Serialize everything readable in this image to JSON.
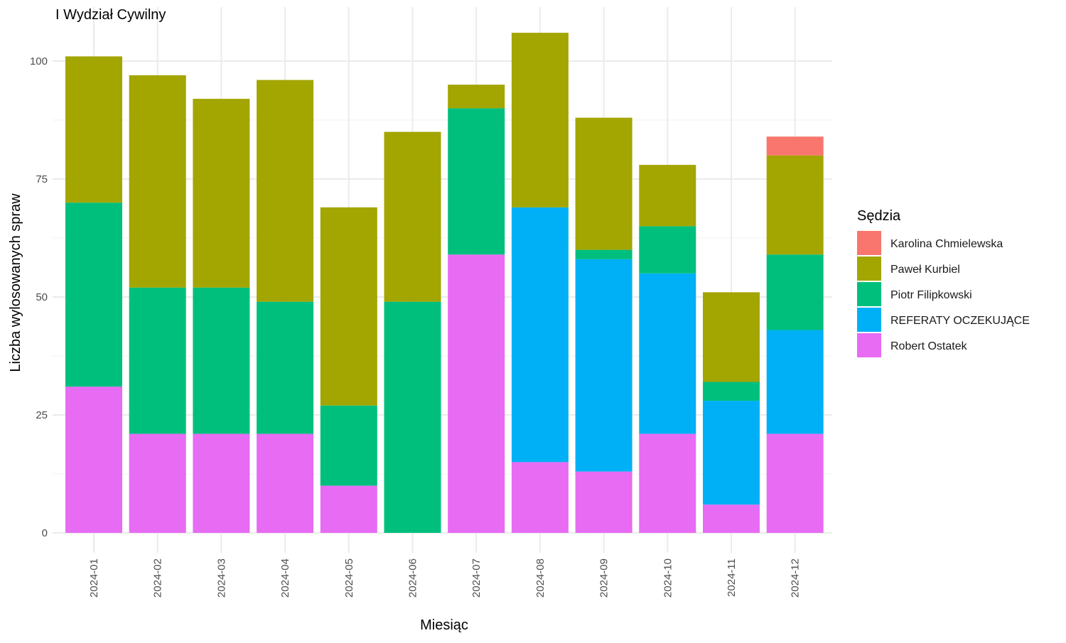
{
  "chart_data": {
    "type": "bar",
    "stacked": true,
    "title": "I Wydział Cywilny",
    "xlabel": "Miesiąc",
    "ylabel": "Liczba wylosowanych spraw",
    "ylim": [
      0,
      110
    ],
    "yticks": [
      0,
      25,
      50,
      75,
      100
    ],
    "grid": true,
    "legend_position": "right",
    "legend_title": "Sędzia",
    "categories": [
      "2024-01",
      "2024-02",
      "2024-03",
      "2024-04",
      "2024-05",
      "2024-06",
      "2024-07",
      "2024-08",
      "2024-09",
      "2024-10",
      "2024-11",
      "2024-12"
    ],
    "series": [
      {
        "name": "Karolina Chmielewska",
        "color": "#F8766D",
        "values": [
          0,
          0,
          0,
          0,
          0,
          0,
          0,
          0,
          0,
          0,
          0,
          4
        ]
      },
      {
        "name": "Paweł Kurbiel",
        "color": "#A3A500",
        "values": [
          31,
          45,
          40,
          47,
          42,
          36,
          5,
          37,
          28,
          13,
          19,
          21
        ]
      },
      {
        "name": "Piotr Filipkowski",
        "color": "#00BF7D",
        "values": [
          39,
          31,
          31,
          28,
          17,
          49,
          31,
          0,
          2,
          10,
          4,
          16
        ]
      },
      {
        "name": "REFERATY OCZEKUJĄCE",
        "color": "#00B0F6",
        "values": [
          0,
          0,
          0,
          0,
          0,
          0,
          0,
          54,
          45,
          34,
          22,
          22
        ]
      },
      {
        "name": "Robert Ostatek",
        "color": "#E76BF3",
        "values": [
          31,
          21,
          21,
          21,
          10,
          0,
          59,
          15,
          13,
          21,
          6,
          21
        ]
      }
    ]
  }
}
